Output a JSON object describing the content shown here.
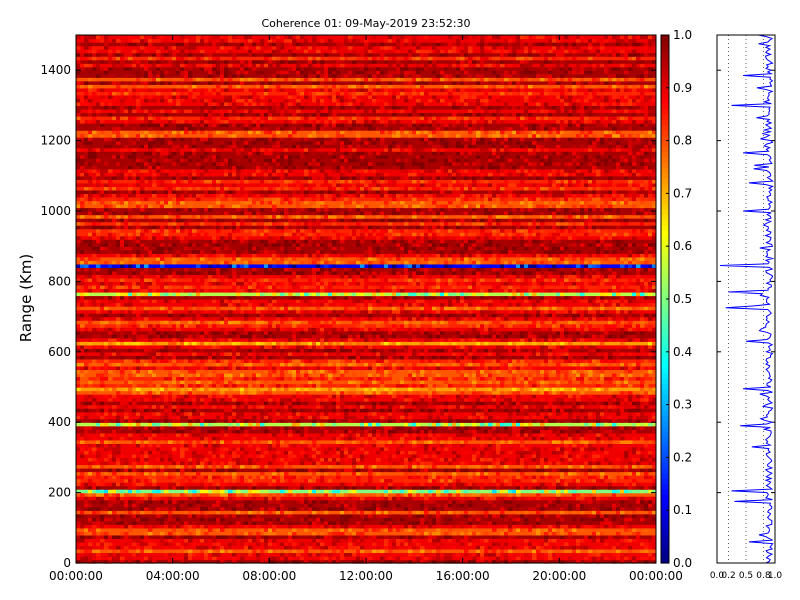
{
  "chart_data": [
    {
      "type": "heatmap",
      "title": "Coherence 01: 09-May-2019 23:52:30",
      "ylabel": "Range (Km)",
      "xlabel": "",
      "xlim_hours": [
        0,
        24
      ],
      "ylim": [
        0,
        1500
      ],
      "x_ticks": [
        "00:00:00",
        "04:00:00",
        "08:00:00",
        "12:00:00",
        "16:00:00",
        "20:00:00",
        "00:00:00"
      ],
      "y_ticks": [
        "0",
        "200",
        "400",
        "600",
        "800",
        "1000",
        "1200",
        "1400"
      ],
      "colormap": "jet",
      "vmin": 0.0,
      "vmax": 1.0,
      "colorbar_ticks": [
        "0.0",
        "0.1",
        "0.2",
        "0.3",
        "0.4",
        "0.5",
        "0.6",
        "0.7",
        "0.8",
        "0.9",
        "1.0"
      ],
      "low_coherence_bands": [
        {
          "range_km": 843,
          "value": 0.12
        },
        {
          "range_km": 768,
          "value": 0.55
        },
        {
          "range_km": 390,
          "value": 0.55
        },
        {
          "range_km": 205,
          "value": 0.5
        },
        {
          "range_km": 497,
          "value": 0.72
        },
        {
          "range_km": 628,
          "value": 0.72
        }
      ],
      "grid": false
    },
    {
      "type": "line",
      "title": "",
      "xlabel": "",
      "ylabel": "",
      "xlim": [
        0.0,
        1.0
      ],
      "ylim": [
        0,
        1500
      ],
      "x_ticks": [
        "0.0",
        "0.2",
        "0.5",
        "0.8",
        "1.0"
      ],
      "grid": "vertical dotted",
      "series_color": "#0000ff",
      "profile_mean": 0.9,
      "dips": [
        {
          "range_km": 843,
          "value": 0.05
        },
        {
          "range_km": 768,
          "value": 0.2
        },
        {
          "range_km": 725,
          "value": 0.15
        },
        {
          "range_km": 1298,
          "value": 0.25
        },
        {
          "range_km": 1165,
          "value": 0.45
        },
        {
          "range_km": 1000,
          "value": 0.45
        },
        {
          "range_km": 497,
          "value": 0.45
        },
        {
          "range_km": 628,
          "value": 0.5
        },
        {
          "range_km": 390,
          "value": 0.4
        },
        {
          "range_km": 205,
          "value": 0.25
        },
        {
          "range_km": 175,
          "value": 0.3
        },
        {
          "range_km": 1385,
          "value": 0.45
        },
        {
          "range_km": 1080,
          "value": 0.55
        },
        {
          "range_km": 330,
          "value": 0.6
        },
        {
          "range_km": 60,
          "value": 0.55
        }
      ]
    }
  ]
}
